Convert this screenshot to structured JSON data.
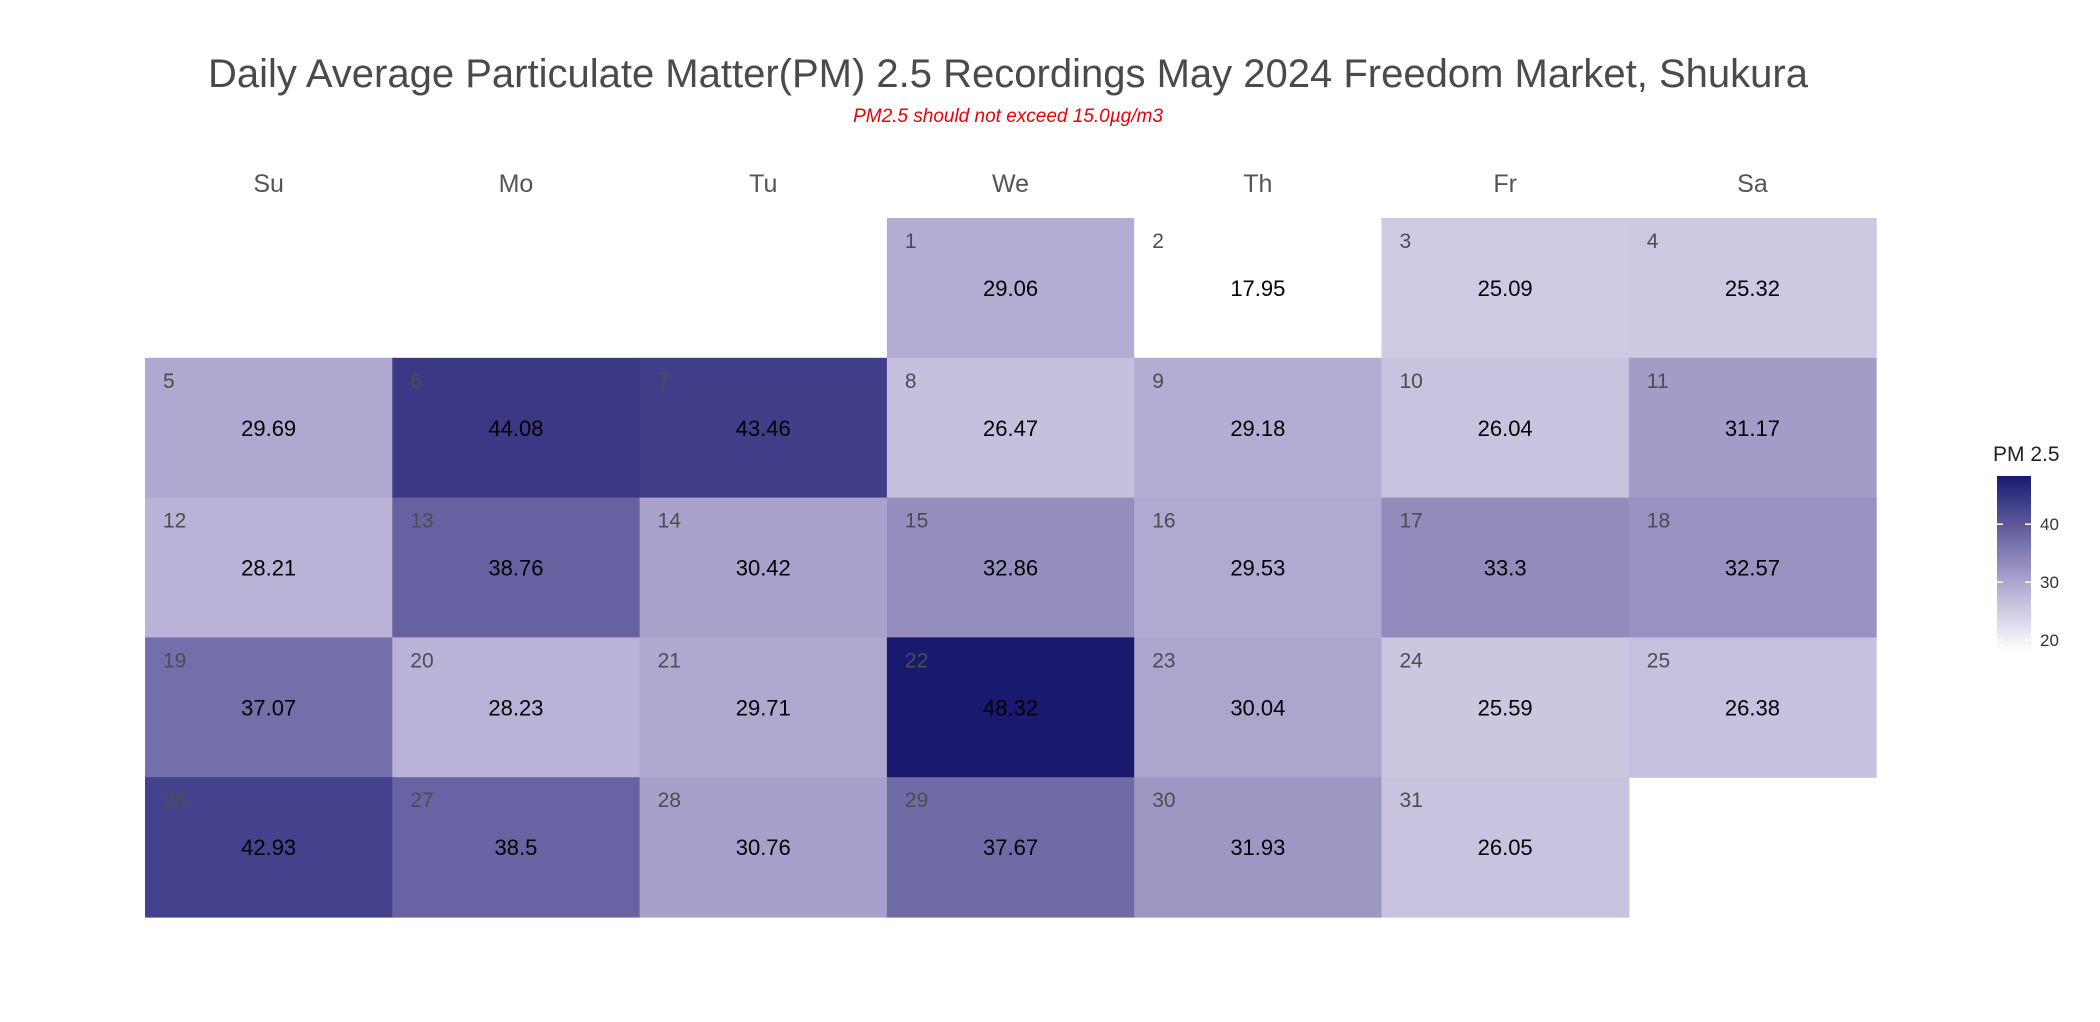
{
  "chart_data": {
    "type": "heatmap",
    "title": "Daily Average Particulate Matter(PM) 2.5 Recordings May 2024 Freedom Market, Shukura",
    "subtitle": "PM2.5 should not exceed 15.0µg/m3",
    "weekdays": [
      "Su",
      "Mo",
      "Tu",
      "We",
      "Th",
      "Fr",
      "Sa"
    ],
    "first_weekday_index": 3,
    "days": [
      1,
      2,
      3,
      4,
      5,
      6,
      7,
      8,
      9,
      10,
      11,
      12,
      13,
      14,
      15,
      16,
      17,
      18,
      19,
      20,
      21,
      22,
      23,
      24,
      25,
      26,
      27,
      28,
      29,
      30,
      31
    ],
    "values": [
      29.06,
      17.95,
      25.09,
      25.32,
      29.69,
      44.08,
      43.46,
      26.47,
      29.18,
      26.04,
      31.17,
      28.21,
      38.76,
      30.42,
      32.86,
      29.53,
      33.3,
      32.57,
      37.07,
      28.23,
      29.71,
      48.32,
      30.04,
      25.59,
      26.38,
      42.93,
      38.5,
      30.76,
      37.67,
      31.93,
      26.05
    ],
    "color_scale": {
      "min": 17.95,
      "max": 48.32,
      "low_color": "#ffffff",
      "high_color": "#191970"
    },
    "legend": {
      "title": "PM 2.5",
      "ticks": [
        20,
        30,
        40
      ],
      "placement": "right"
    }
  }
}
